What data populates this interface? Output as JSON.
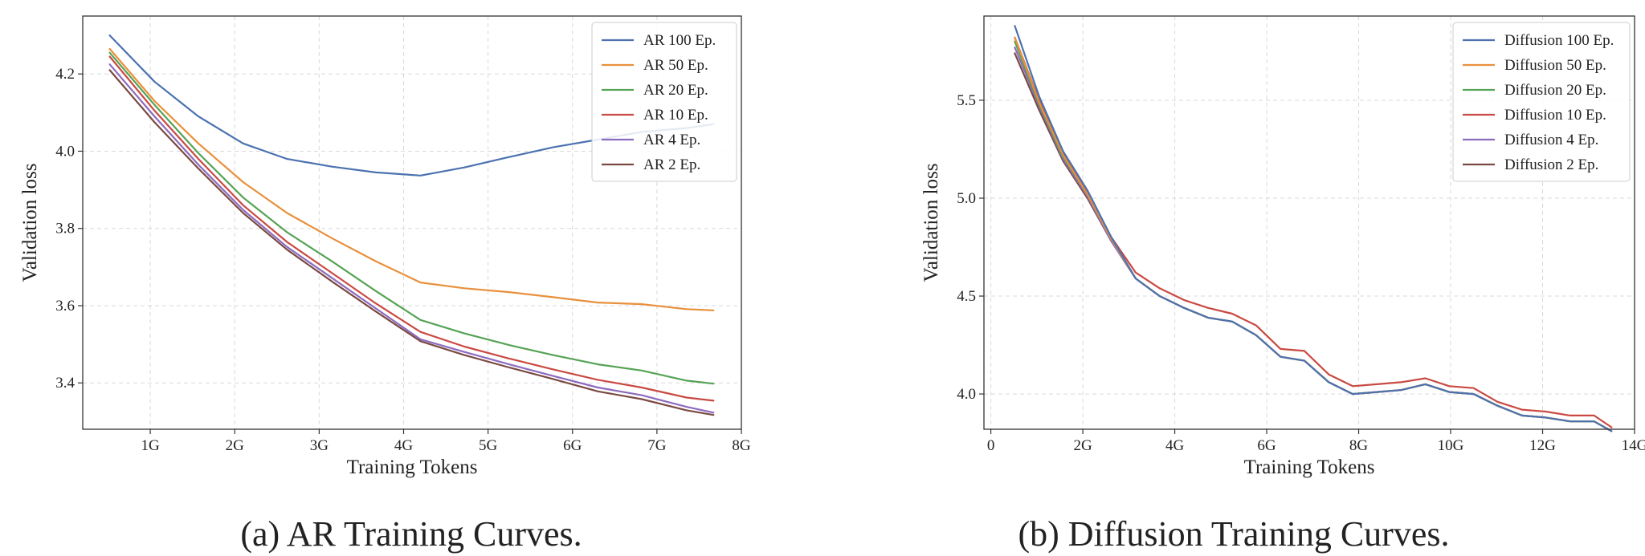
{
  "captions": {
    "a": "(a) AR Training Curves.",
    "b": "(b) Diffusion Training Curves."
  },
  "chart_data": [
    {
      "type": "line",
      "xlabel": "Training Tokens",
      "ylabel": "Validation loss",
      "xlim": [
        0.2,
        8.0
      ],
      "ylim": [
        3.28,
        4.35
      ],
      "xticks": [
        1,
        2,
        3,
        4,
        5,
        6,
        7,
        8
      ],
      "xtick_labels": [
        "1G",
        "2G",
        "3G",
        "4G",
        "5G",
        "6G",
        "7G",
        "8G"
      ],
      "yticks": [
        3.4,
        3.6,
        3.8,
        4.0,
        4.2
      ],
      "ytick_labels": [
        "3.4",
        "3.6",
        "3.8",
        "4.0",
        "4.2"
      ],
      "grid": true,
      "legend_position": "top-right",
      "x": [
        0.52,
        1.05,
        1.57,
        2.1,
        2.62,
        3.15,
        3.67,
        4.2,
        4.72,
        5.25,
        5.77,
        6.3,
        6.82,
        7.35,
        7.67
      ],
      "series": [
        {
          "name": "AR 100 Ep.",
          "color": "#4c72b0",
          "values": [
            4.3,
            4.18,
            4.09,
            4.02,
            3.98,
            3.96,
            3.945,
            3.937,
            3.958,
            3.985,
            4.01,
            4.03,
            4.05,
            4.06,
            4.07
          ]
        },
        {
          "name": "AR 50 Ep.",
          "color": "#e8903c",
          "values": [
            4.265,
            4.13,
            4.02,
            3.92,
            3.84,
            3.775,
            3.715,
            3.66,
            3.645,
            3.635,
            3.622,
            3.608,
            3.604,
            3.591,
            3.588
          ]
        },
        {
          "name": "AR 20 Ep.",
          "color": "#55a355",
          "values": [
            4.255,
            4.12,
            3.995,
            3.88,
            3.79,
            3.715,
            3.638,
            3.563,
            3.528,
            3.498,
            3.472,
            3.448,
            3.432,
            3.406,
            3.398
          ]
        },
        {
          "name": "AR 10 Ep.",
          "color": "#c94a42",
          "values": [
            4.245,
            4.105,
            3.98,
            3.86,
            3.765,
            3.685,
            3.606,
            3.532,
            3.494,
            3.463,
            3.435,
            3.408,
            3.388,
            3.362,
            3.354
          ]
        },
        {
          "name": "AR 4 Ep.",
          "color": "#8c6bbf",
          "values": [
            4.225,
            4.09,
            3.965,
            3.848,
            3.752,
            3.672,
            3.593,
            3.513,
            3.48,
            3.448,
            3.418,
            3.388,
            3.368,
            3.338,
            3.323
          ]
        },
        {
          "name": "AR 2 Ep.",
          "color": "#7a4a42",
          "values": [
            4.21,
            4.075,
            3.955,
            3.84,
            3.745,
            3.663,
            3.585,
            3.508,
            3.472,
            3.44,
            3.41,
            3.378,
            3.358,
            3.329,
            3.317
          ]
        }
      ]
    },
    {
      "type": "line",
      "xlabel": "Training Tokens",
      "ylabel": "Validation loss",
      "xlim": [
        -0.15,
        14.0
      ],
      "ylim": [
        3.82,
        5.93
      ],
      "xticks": [
        0,
        2,
        4,
        6,
        8,
        10,
        12,
        14
      ],
      "xtick_labels": [
        "0",
        "2G",
        "4G",
        "6G",
        "8G",
        "10G",
        "12G",
        "14G"
      ],
      "yticks": [
        4.0,
        4.5,
        5.0,
        5.5
      ],
      "ytick_labels": [
        "4.0",
        "4.5",
        "5.0",
        "5.5"
      ],
      "grid": true,
      "legend_position": "top-right",
      "x": [
        0.52,
        1.05,
        1.57,
        2.1,
        2.62,
        3.15,
        3.67,
        4.2,
        4.72,
        5.25,
        5.77,
        6.3,
        6.82,
        7.35,
        7.87,
        8.4,
        8.92,
        9.45,
        9.97,
        10.5,
        11.02,
        11.55,
        12.07,
        12.6,
        13.12,
        13.5
      ],
      "series": [
        {
          "name": "Diffusion 100 Ep.",
          "color": "#4c72b0",
          "values": [
            5.88,
            5.52,
            5.24,
            5.04,
            4.8,
            4.59,
            4.5,
            4.44,
            4.39,
            4.37,
            4.3,
            4.19,
            4.17,
            4.06,
            4.0,
            4.01,
            4.02,
            4.05,
            4.01,
            4.0,
            3.94,
            3.89,
            3.88,
            3.86,
            3.86,
            3.81
          ]
        },
        {
          "name": "Diffusion 50 Ep.",
          "color": "#e8903c",
          "values": [
            5.82,
            5.49,
            5.22,
            5.02,
            4.79,
            4.59,
            4.5,
            4.44,
            4.39,
            4.37,
            4.3,
            4.19,
            4.17,
            4.06,
            4.0,
            4.01,
            4.02,
            4.05,
            4.01,
            4.0,
            3.94,
            3.89,
            3.88,
            3.86,
            3.86,
            3.81
          ]
        },
        {
          "name": "Diffusion 20 Ep.",
          "color": "#55a355",
          "values": [
            5.8,
            5.48,
            5.21,
            5.02,
            4.79,
            4.59,
            4.5,
            4.44,
            4.39,
            4.37,
            4.3,
            4.19,
            4.17,
            4.06,
            4.0,
            4.01,
            4.02,
            4.05,
            4.01,
            4.0,
            3.94,
            3.89,
            3.88,
            3.86,
            3.86,
            3.81
          ]
        },
        {
          "name": "Diffusion 10 Ep.",
          "color": "#c94a42",
          "values": [
            5.82,
            5.5,
            5.23,
            5.03,
            4.8,
            4.62,
            4.54,
            4.48,
            4.44,
            4.41,
            4.35,
            4.23,
            4.22,
            4.1,
            4.04,
            4.05,
            4.06,
            4.08,
            4.04,
            4.03,
            3.96,
            3.92,
            3.91,
            3.89,
            3.89,
            3.83
          ]
        },
        {
          "name": "Diffusion 4 Ep.",
          "color": "#8c6bbf",
          "values": [
            5.77,
            5.47,
            5.2,
            5.01,
            4.78,
            4.59,
            4.5,
            4.44,
            4.39,
            4.37,
            4.3,
            4.19,
            4.17,
            4.06,
            4.0,
            4.01,
            4.02,
            4.05,
            4.01,
            4.0,
            3.94,
            3.89,
            3.88,
            3.86,
            3.86,
            3.81
          ]
        },
        {
          "name": "Diffusion 2 Ep.",
          "color": "#7a4a42",
          "values": [
            5.74,
            5.45,
            5.19,
            5.0,
            4.78,
            4.59,
            4.5,
            4.44,
            4.39,
            4.37,
            4.3,
            4.19,
            4.17,
            4.06,
            4.0,
            4.01,
            4.02,
            4.05,
            4.01,
            4.0,
            3.94,
            3.89,
            3.88,
            3.86,
            3.86,
            3.81
          ]
        }
      ]
    }
  ]
}
